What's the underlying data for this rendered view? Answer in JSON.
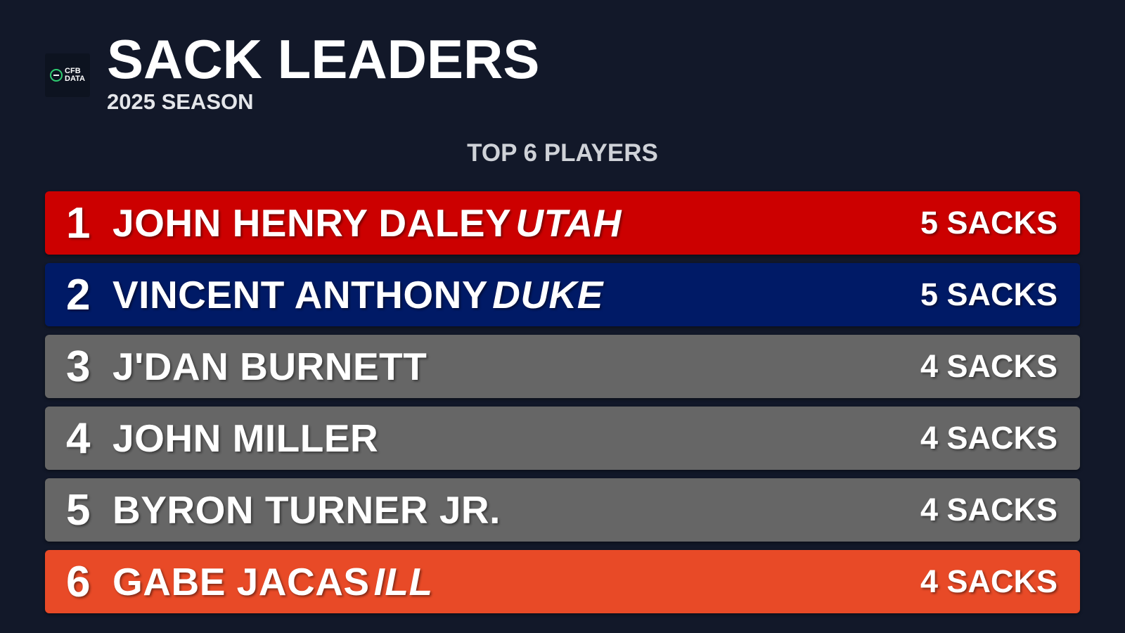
{
  "header": {
    "logo_text_line1": "CFB",
    "logo_text_line2": "DATA",
    "title": "SACK LEADERS",
    "subtitle": "2025 SEASON"
  },
  "section_label": "TOP 6 PLAYERS",
  "rows": [
    {
      "rank": "1",
      "name": "JOHN HENRY DALEY",
      "team": "UTAH",
      "sacks": "5 SACKS",
      "color": "#cc0000"
    },
    {
      "rank": "2",
      "name": "VINCENT ANTHONY",
      "team": "DUKE",
      "sacks": "5 SACKS",
      "color": "#001a66"
    },
    {
      "rank": "3",
      "name": "J'DAN BURNETT",
      "team": "",
      "sacks": "4 SACKS",
      "color": "#666666"
    },
    {
      "rank": "4",
      "name": "JOHN MILLER",
      "team": "",
      "sacks": "4 SACKS",
      "color": "#666666"
    },
    {
      "rank": "5",
      "name": "BYRON TURNER JR.",
      "team": "",
      "sacks": "4 SACKS",
      "color": "#666666"
    },
    {
      "rank": "6",
      "name": "GABE JACAS",
      "team": "ILL",
      "sacks": "4 SACKS",
      "color": "#e84a27"
    }
  ]
}
